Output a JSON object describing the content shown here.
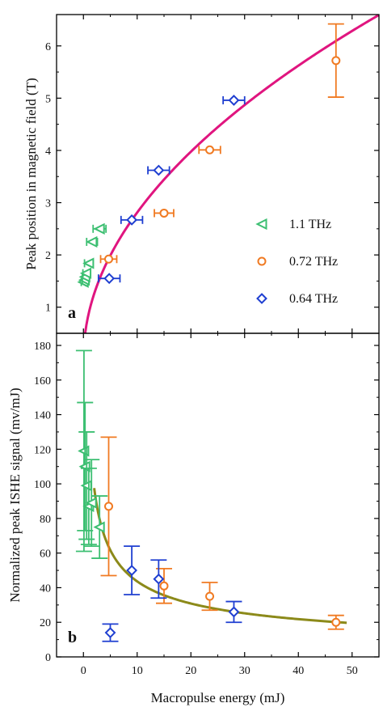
{
  "chart_data": [
    {
      "panel": "a",
      "type": "scatter",
      "ylabel": "Peak position in magnetic field (T)",
      "xlim": [
        -5,
        55
      ],
      "ylim": [
        0.5,
        6.6
      ],
      "xticks": [
        0,
        10,
        20,
        30,
        40,
        50
      ],
      "yticks": [
        1,
        2,
        3,
        4,
        5,
        6
      ],
      "series": [
        {
          "name": "1.1 THz",
          "marker": "triangle-left",
          "color": "#3dbf72",
          "points": [
            {
              "x": 0.0,
              "y": 1.48,
              "xerr": 0.4
            },
            {
              "x": 0.2,
              "y": 1.52,
              "xerr": 0.4
            },
            {
              "x": 0.3,
              "y": 1.58,
              "xerr": 0.5
            },
            {
              "x": 0.5,
              "y": 1.65,
              "xerr": 0.6
            },
            {
              "x": 1.0,
              "y": 1.84,
              "xerr": 0.8
            },
            {
              "x": 1.6,
              "y": 2.25,
              "xerr": 1.0
            },
            {
              "x": 3.0,
              "y": 2.5,
              "xerr": 1.2
            }
          ]
        },
        {
          "name": "0.72 THz",
          "marker": "circle",
          "color": "#f07a22",
          "points": [
            {
              "x": 4.7,
              "y": 1.92,
              "xerr": 1.5
            },
            {
              "x": 15.0,
              "y": 2.8,
              "xerr": 1.8
            },
            {
              "x": 23.5,
              "y": 4.01,
              "xerr": 2.0
            },
            {
              "x": 47.0,
              "y": 5.72,
              "xerr": 0,
              "yerr": 0.7
            }
          ]
        },
        {
          "name": "0.64 THz",
          "marker": "diamond",
          "color": "#1f3fd1",
          "points": [
            {
              "x": 4.8,
              "y": 1.55,
              "xerr": 2.0
            },
            {
              "x": 9.0,
              "y": 2.67,
              "xerr": 2.0
            },
            {
              "x": 14.0,
              "y": 3.62,
              "xerr": 2.0
            },
            {
              "x": 28.0,
              "y": 4.96,
              "xerr": 2.0
            }
          ]
        }
      ],
      "fit": {
        "color": "#e0157f",
        "model": "a*sqrt(x)",
        "coef": 0.889,
        "xrange": [
          0,
          55
        ]
      }
    },
    {
      "panel": "b",
      "type": "scatter",
      "xlabel": "Macropulse energy (mJ)",
      "ylabel": "Normalized peak ISHE signal (mv/mJ)",
      "xlim": [
        -5,
        55
      ],
      "ylim": [
        0,
        187
      ],
      "xticks": [
        0,
        10,
        20,
        30,
        40,
        50
      ],
      "yticks": [
        0,
        20,
        40,
        60,
        80,
        100,
        120,
        140,
        160,
        180
      ],
      "series": [
        {
          "name": "1.1 THz",
          "marker": "triangle-left",
          "color": "#3dbf72",
          "points": [
            {
              "x": 0.1,
              "y": 119,
              "yerr": 58
            },
            {
              "x": 0.3,
              "y": 110,
              "yerr": 37
            },
            {
              "x": 0.6,
              "y": 99,
              "yerr": 31
            },
            {
              "x": 1.0,
              "y": 87,
              "yerr": 22
            },
            {
              "x": 1.5,
              "y": 89,
              "yerr": 25
            },
            {
              "x": 3.0,
              "y": 75,
              "yerr": 18
            }
          ]
        },
        {
          "name": "0.72 THz",
          "marker": "circle",
          "color": "#f07a22",
          "points": [
            {
              "x": 4.7,
              "y": 87,
              "yerr": 40
            },
            {
              "x": 15.0,
              "y": 41,
              "yerr": 10
            },
            {
              "x": 23.5,
              "y": 35,
              "yerr": 8
            },
            {
              "x": 47.0,
              "y": 20,
              "yerr": 4
            }
          ]
        },
        {
          "name": "0.64 THz",
          "marker": "diamond",
          "color": "#1f3fd1",
          "points": [
            {
              "x": 5.0,
              "y": 14,
              "yerr": 5
            },
            {
              "x": 9.0,
              "y": 50,
              "yerr": 14
            },
            {
              "x": 14.0,
              "y": 45,
              "yerr": 11
            },
            {
              "x": 28.0,
              "y": 26,
              "yerr": 6
            }
          ]
        }
      ],
      "fit": {
        "color": "#8c8a1a",
        "model": "a/sqrt(x)",
        "coef": 138,
        "xrange": [
          2,
          49
        ]
      }
    }
  ],
  "legend": {
    "placement": "panel a, lower right",
    "entries": [
      "1.1 THz",
      "0.72 THz",
      "0.64 THz"
    ]
  }
}
